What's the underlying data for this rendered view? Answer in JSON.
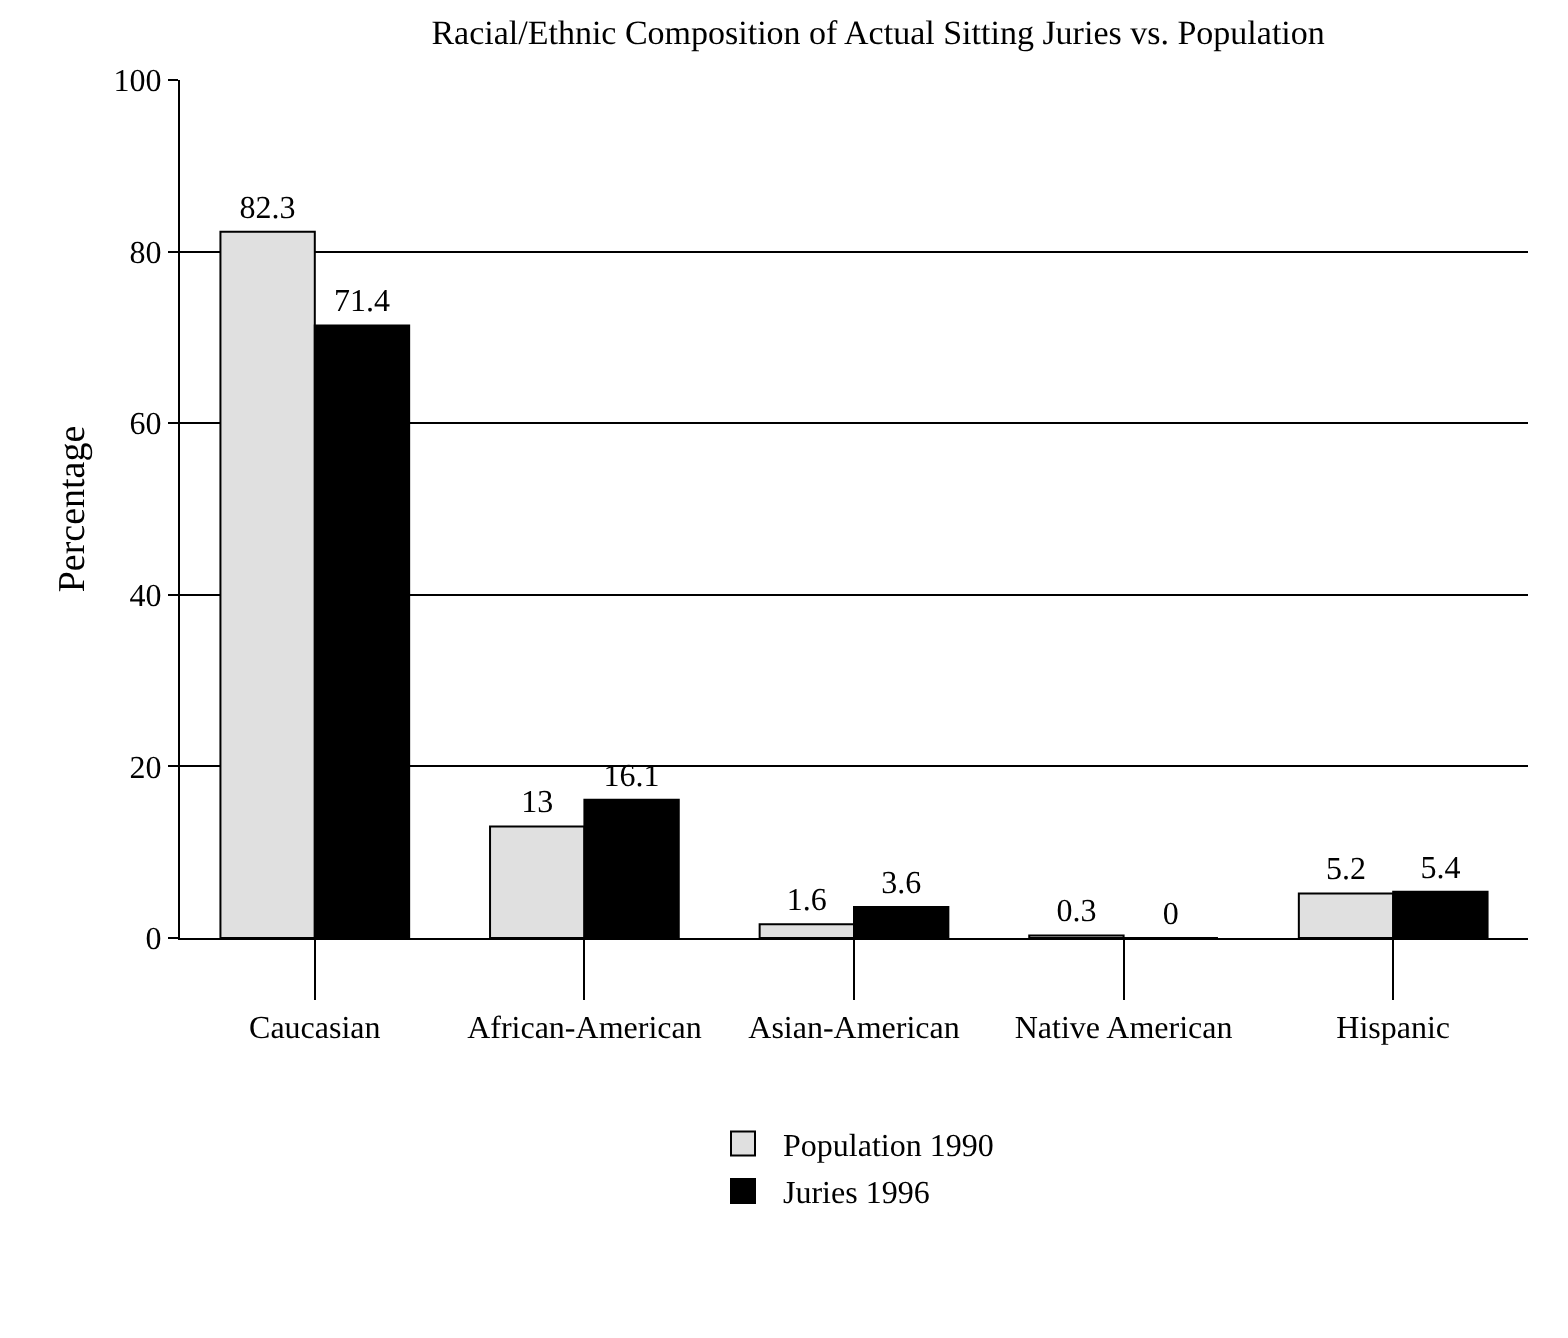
{
  "chart_data": {
    "type": "bar",
    "title": "Racial/Ethnic Composition of Actual Sitting Juries vs. Population",
    "ylabel": "Percentage",
    "categories": [
      "Caucasian",
      "African-American",
      "Asian-American",
      "Native American",
      "Hispanic"
    ],
    "series": [
      {
        "name": "Population 1990",
        "color": "#e0e0e0",
        "values": [
          82.3,
          13,
          1.6,
          0.3,
          5.2
        ]
      },
      {
        "name": "Juries 1996",
        "color": "#000000",
        "values": [
          71.4,
          16.1,
          3.6,
          0,
          5.4
        ]
      }
    ],
    "ylim": [
      0,
      100
    ],
    "yticks": [
      0,
      20,
      40,
      60,
      80,
      100
    ],
    "grid": "y",
    "legend": "bottom",
    "data_labels": true
  }
}
